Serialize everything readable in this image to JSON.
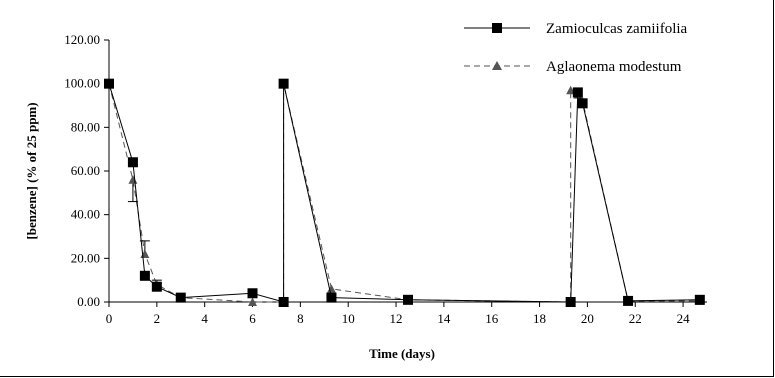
{
  "chart_data": {
    "type": "line",
    "title": "",
    "xlabel": "Time (days)",
    "ylabel": "[benzene] (% of 25 ppm)",
    "xlim": [
      0,
      25
    ],
    "ylim": [
      0,
      120
    ],
    "x_ticks": [
      "0",
      "2",
      "4",
      "6",
      "8",
      "10",
      "12",
      "14",
      "16",
      "18",
      "20",
      "22",
      "24"
    ],
    "y_ticks": [
      "0.00",
      "20.00",
      "40.00",
      "60.00",
      "80.00",
      "100.00",
      "120.00"
    ],
    "x_tick_values": [
      0,
      2,
      4,
      6,
      8,
      10,
      12,
      14,
      16,
      18,
      20,
      22,
      24
    ],
    "y_tick_values": [
      0,
      20,
      40,
      60,
      80,
      100,
      120
    ],
    "grid": false,
    "legend_position": "top-right",
    "series": [
      {
        "name": "Zamioculcas zamiifolia",
        "line": "solid",
        "marker": "square",
        "color": "#000000",
        "points": [
          [
            0,
            100
          ],
          [
            1,
            64
          ],
          [
            1.5,
            12
          ],
          [
            2,
            7
          ],
          [
            3,
            2
          ],
          [
            6,
            4
          ],
          [
            7.3,
            0
          ],
          [
            7.3,
            100
          ],
          [
            9.3,
            2
          ],
          [
            12.5,
            1
          ],
          [
            19.3,
            0
          ],
          [
            19.6,
            96
          ],
          [
            19.8,
            91
          ],
          [
            21.7,
            0.5
          ],
          [
            24.7,
            1
          ]
        ],
        "error_bars": [
          {
            "x": 1,
            "y": 64,
            "plus": 0,
            "minus": 0
          }
        ]
      },
      {
        "name": "Aglaonema modestum",
        "line": "dashed",
        "marker": "triangle",
        "color": "#555555",
        "points": [
          [
            0,
            100
          ],
          [
            1,
            56
          ],
          [
            1.5,
            22
          ],
          [
            2,
            8
          ],
          [
            3,
            2
          ],
          [
            6,
            0
          ],
          [
            7.3,
            0
          ],
          [
            7.3,
            100
          ],
          [
            9.3,
            6
          ],
          [
            12.5,
            1
          ],
          [
            19.3,
            0
          ],
          [
            19.3,
            97
          ],
          [
            19.6,
            95
          ],
          [
            19.8,
            92
          ],
          [
            21.7,
            0.5
          ],
          [
            24.7,
            0.5
          ]
        ],
        "error_bars": [
          {
            "x": 1,
            "y": 56,
            "plus": 0,
            "minus": 10
          },
          {
            "x": 1.5,
            "y": 22,
            "plus": 6,
            "minus": 0
          },
          {
            "x": 2,
            "y": 8,
            "plus": 2,
            "minus": 0
          }
        ]
      }
    ]
  }
}
